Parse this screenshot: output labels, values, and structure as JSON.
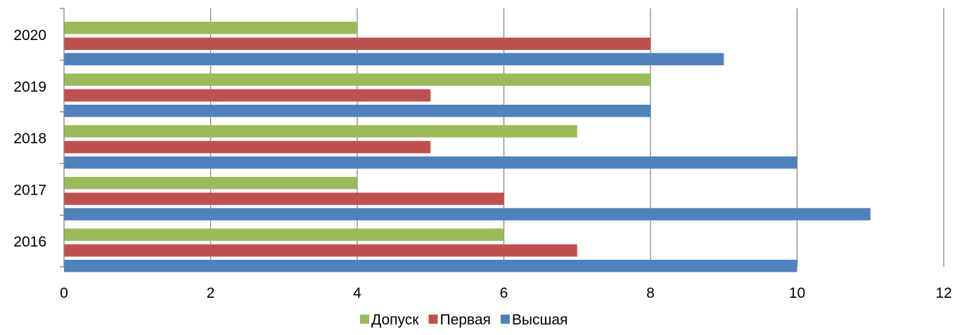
{
  "chart_data": {
    "type": "bar",
    "orientation": "horizontal",
    "categories": [
      "2016",
      "2017",
      "2018",
      "2019",
      "2020"
    ],
    "series": [
      {
        "name": "Высшая",
        "color": "#4F81BD",
        "values": [
          10,
          11,
          10,
          8,
          9
        ]
      },
      {
        "name": "Первая",
        "color": "#C0504D",
        "values": [
          7,
          6,
          5,
          5,
          8
        ]
      },
      {
        "name": "Допуск",
        "color": "#9BBB59",
        "values": [
          6,
          4,
          7,
          8,
          4
        ]
      }
    ],
    "xlim": [
      0,
      12
    ],
    "xticks": [
      0,
      2,
      4,
      6,
      8,
      10,
      12
    ],
    "grid": "vertical-major",
    "legend": {
      "position": "bottom-center",
      "order": [
        "Допуск",
        "Первая",
        "Высшая"
      ]
    },
    "title": "",
    "xlabel": "",
    "ylabel": ""
  }
}
